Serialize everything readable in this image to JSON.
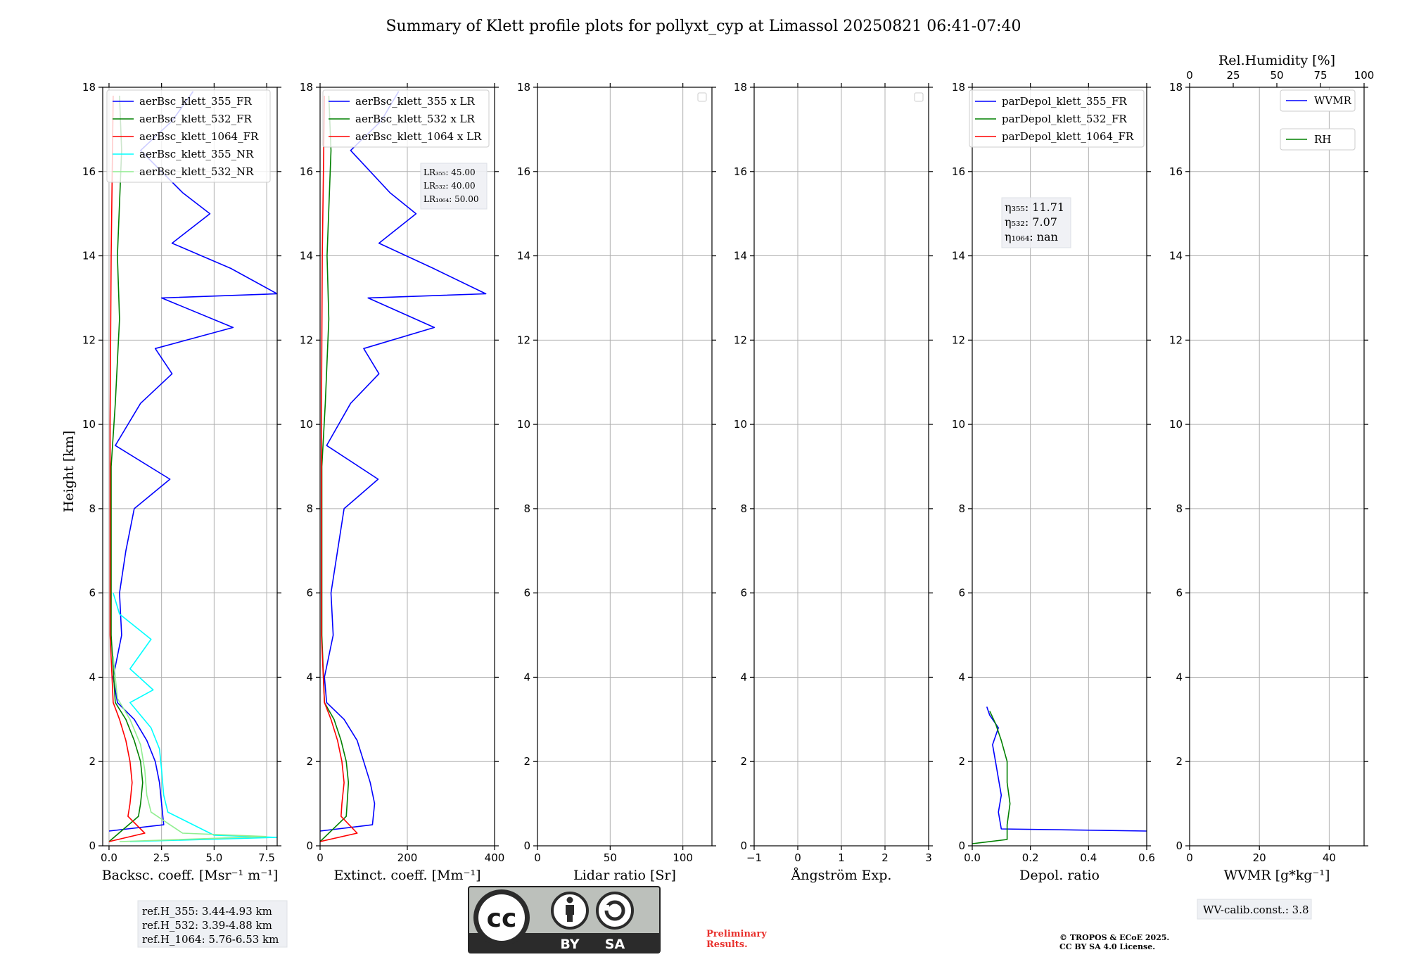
{
  "chart_data": {
    "title": "Summary of Klett profile plots for pollyxt_cyp at Limassol 20250821 06:41-07:40",
    "ylabel": "Height [km]",
    "ylim": [
      0,
      18
    ],
    "yticks": [
      "0",
      "2",
      "4",
      "6",
      "8",
      "10",
      "12",
      "14",
      "16",
      "18"
    ],
    "panels": [
      {
        "id": "backscatter",
        "type": "line",
        "xlabel": "Backsc. coeff. [Msr⁻¹ m⁻¹]",
        "xlim": [
          -0.3,
          8
        ],
        "xticks": [
          {
            "v": 0,
            "t": "0.0"
          },
          {
            "v": 2.5,
            "t": "2.5"
          },
          {
            "v": 5,
            "t": "5.0"
          },
          {
            "v": 7.5,
            "t": "7.5"
          }
        ],
        "legend": [
          "aerBsc_klett_355_FR",
          "aerBsc_klett_532_FR",
          "aerBsc_klett_1064_FR",
          "aerBsc_klett_355_NR",
          "aerBsc_klett_532_NR"
        ],
        "series": [
          {
            "name": "aerBsc_klett_355_FR",
            "color": "#0000ff",
            "points": [
              [
                0.0,
                0.35
              ],
              [
                2.6,
                0.5
              ],
              [
                2.5,
                1.0
              ],
              [
                2.4,
                1.5
              ],
              [
                2.2,
                2.0
              ],
              [
                1.8,
                2.5
              ],
              [
                1.2,
                3.0
              ],
              [
                0.4,
                3.4
              ],
              [
                0.2,
                4
              ],
              [
                0.6,
                5
              ],
              [
                0.5,
                6
              ],
              [
                0.8,
                7
              ],
              [
                1.2,
                8
              ],
              [
                2.9,
                8.7
              ],
              [
                0.3,
                9.5
              ],
              [
                1.5,
                10.5
              ],
              [
                3.0,
                11.2
              ],
              [
                2.2,
                11.8
              ],
              [
                5.9,
                12.3
              ],
              [
                2.5,
                13.0
              ],
              [
                8.0,
                13.1
              ],
              [
                5.8,
                13.7
              ],
              [
                3.0,
                14.3
              ],
              [
                4.8,
                15.0
              ],
              [
                3.5,
                15.5
              ],
              [
                1.5,
                16.5
              ],
              [
                3.0,
                17.2
              ],
              [
                4.0,
                17.9
              ]
            ]
          },
          {
            "name": "aerBsc_klett_532_FR",
            "color": "#008000",
            "points": [
              [
                0.0,
                0.1
              ],
              [
                1.4,
                0.7
              ],
              [
                1.5,
                1.0
              ],
              [
                1.6,
                1.5
              ],
              [
                1.5,
                2.0
              ],
              [
                1.2,
                2.5
              ],
              [
                0.8,
                3.0
              ],
              [
                0.3,
                3.4
              ],
              [
                0.1,
                5
              ],
              [
                0.1,
                9
              ],
              [
                0.3,
                10.5
              ],
              [
                0.5,
                12.5
              ],
              [
                0.4,
                14
              ],
              [
                0.6,
                16.5
              ],
              [
                0.5,
                17.8
              ]
            ]
          },
          {
            "name": "aerBsc_klett_1064_FR",
            "color": "#ff0000",
            "points": [
              [
                0.0,
                0.1
              ],
              [
                1.7,
                0.3
              ],
              [
                0.9,
                0.7
              ],
              [
                1.0,
                1.0
              ],
              [
                1.1,
                1.5
              ],
              [
                1.0,
                2.0
              ],
              [
                0.8,
                2.5
              ],
              [
                0.5,
                3.0
              ],
              [
                0.2,
                3.4
              ],
              [
                0.05,
                5
              ],
              [
                0.05,
                10
              ],
              [
                0.1,
                14
              ],
              [
                0.2,
                17.8
              ]
            ]
          },
          {
            "name": "aerBsc_klett_355_NR",
            "color": "#00ffff",
            "points": [
              [
                1.0,
                0.1
              ],
              [
                8.0,
                0.2
              ],
              [
                5.0,
                0.25
              ],
              [
                2.8,
                0.8
              ],
              [
                2.6,
                1.2
              ],
              [
                2.5,
                1.8
              ],
              [
                2.4,
                2.3
              ],
              [
                2.0,
                2.8
              ],
              [
                1.0,
                3.4
              ],
              [
                2.1,
                3.7
              ],
              [
                1.0,
                4.2
              ],
              [
                2.0,
                4.9
              ],
              [
                0.5,
                5.5
              ],
              [
                0.2,
                6
              ]
            ]
          },
          {
            "name": "aerBsc_klett_532_NR",
            "color": "#90ee90",
            "points": [
              [
                0.5,
                0.1
              ],
              [
                7.5,
                0.22
              ],
              [
                3.5,
                0.3
              ],
              [
                2.0,
                0.8
              ],
              [
                1.8,
                1.2
              ],
              [
                1.7,
                1.8
              ],
              [
                1.5,
                2.4
              ],
              [
                1.0,
                3.0
              ],
              [
                0.4,
                3.5
              ],
              [
                0.2,
                4.5
              ]
            ]
          }
        ]
      },
      {
        "id": "extinction",
        "type": "line",
        "xlabel": "Extinct. coeff. [Mm⁻¹]",
        "xlim": [
          0,
          400
        ],
        "xticks": [
          {
            "v": 0,
            "t": "0"
          },
          {
            "v": 200,
            "t": "200"
          },
          {
            "v": 400,
            "t": "400"
          }
        ],
        "legend": [
          "aerBsc_klett_355 x LR",
          "aerBsc_klett_532 x LR",
          "aerBsc_klett_1064 x LR"
        ],
        "annotation": {
          "lines": [
            "LR₃₅₅: 45.00",
            "LR₅₃₂: 40.00",
            "LR₁₀₆₄: 50.00"
          ]
        },
        "series": [
          {
            "name": "aerBsc_klett_355 x LR",
            "color": "#0000ff",
            "points": [
              [
                0,
                0.35
              ],
              [
                120,
                0.5
              ],
              [
                125,
                1.0
              ],
              [
                115,
                1.5
              ],
              [
                100,
                2.0
              ],
              [
                85,
                2.5
              ],
              [
                55,
                3.0
              ],
              [
                15,
                3.4
              ],
              [
                10,
                4
              ],
              [
                30,
                5
              ],
              [
                25,
                6
              ],
              [
                40,
                7
              ],
              [
                55,
                8
              ],
              [
                133,
                8.7
              ],
              [
                15,
                9.5
              ],
              [
                70,
                10.5
              ],
              [
                135,
                11.2
              ],
              [
                100,
                11.8
              ],
              [
                262,
                12.3
              ],
              [
                110,
                13.0
              ],
              [
                380,
                13.1
              ],
              [
                260,
                13.7
              ],
              [
                135,
                14.3
              ],
              [
                220,
                15.0
              ],
              [
                160,
                15.5
              ],
              [
                70,
                16.5
              ],
              [
                140,
                17.2
              ],
              [
                180,
                17.9
              ]
            ]
          },
          {
            "name": "aerBsc_klett_532 x LR",
            "color": "#008000",
            "points": [
              [
                0,
                0.1
              ],
              [
                60,
                0.7
              ],
              [
                62,
                1.0
              ],
              [
                65,
                1.5
              ],
              [
                60,
                2.0
              ],
              [
                48,
                2.5
              ],
              [
                32,
                3.0
              ],
              [
                10,
                3.4
              ],
              [
                4,
                5
              ],
              [
                4,
                9
              ],
              [
                12,
                10.5
              ],
              [
                20,
                12.5
              ],
              [
                16,
                14
              ],
              [
                25,
                16.5
              ],
              [
                20,
                17.8
              ]
            ]
          },
          {
            "name": "aerBsc_klett_1064 x LR",
            "color": "#ff0000",
            "points": [
              [
                0,
                0.1
              ],
              [
                85,
                0.3
              ],
              [
                48,
                0.7
              ],
              [
                50,
                1.0
              ],
              [
                55,
                1.5
              ],
              [
                50,
                2.0
              ],
              [
                40,
                2.5
              ],
              [
                25,
                3.0
              ],
              [
                10,
                3.4
              ],
              [
                3,
                5
              ],
              [
                3,
                10
              ],
              [
                5,
                14
              ],
              [
                10,
                17.8
              ]
            ]
          }
        ]
      },
      {
        "id": "lidar_ratio",
        "type": "line",
        "xlabel": "Lidar ratio [Sr]",
        "xlim": [
          0,
          120
        ],
        "xticks": [
          {
            "v": 0,
            "t": "0"
          },
          {
            "v": 50,
            "t": "50"
          },
          {
            "v": 100,
            "t": "100"
          }
        ],
        "series": []
      },
      {
        "id": "angstrom",
        "type": "line",
        "xlabel": "Ångström Exp.",
        "xlim": [
          -1,
          3
        ],
        "xticks": [
          {
            "v": -1,
            "t": "−1"
          },
          {
            "v": 0,
            "t": "0"
          },
          {
            "v": 1,
            "t": "1"
          },
          {
            "v": 2,
            "t": "2"
          },
          {
            "v": 3,
            "t": "3"
          }
        ],
        "series": []
      },
      {
        "id": "depol",
        "type": "line",
        "xlabel": "Depol. ratio",
        "xlim": [
          0,
          0.6
        ],
        "xticks": [
          {
            "v": 0,
            "t": "0.0"
          },
          {
            "v": 0.2,
            "t": "0.2"
          },
          {
            "v": 0.4,
            "t": "0.4"
          },
          {
            "v": 0.6,
            "t": "0.6"
          }
        ],
        "legend": [
          "parDepol_klett_355_FR",
          "parDepol_klett_532_FR",
          "parDepol_klett_1064_FR"
        ],
        "annotation": {
          "lines": [
            "η₃₅₅: 11.71",
            "η₅₃₂: 7.07",
            "η₁₀₆₄: nan"
          ]
        },
        "series": [
          {
            "name": "parDepol_klett_355_FR",
            "color": "#0000ff",
            "points": [
              [
                0.6,
                0.35
              ],
              [
                0.1,
                0.4
              ],
              [
                0.09,
                0.8
              ],
              [
                0.1,
                1.2
              ],
              [
                0.09,
                1.6
              ],
              [
                0.08,
                2.0
              ],
              [
                0.07,
                2.4
              ],
              [
                0.09,
                2.8
              ],
              [
                0.06,
                3.1
              ],
              [
                0.05,
                3.3
              ]
            ]
          },
          {
            "name": "parDepol_klett_532_FR",
            "color": "#008000",
            "points": [
              [
                0.0,
                0.05
              ],
              [
                0.12,
                0.15
              ],
              [
                0.12,
                0.5
              ],
              [
                0.13,
                1.0
              ],
              [
                0.12,
                1.5
              ],
              [
                0.12,
                2.0
              ],
              [
                0.1,
                2.5
              ],
              [
                0.08,
                2.9
              ],
              [
                0.06,
                3.2
              ]
            ]
          },
          {
            "name": "parDepol_klett_1064_FR",
            "color": "#ff0000",
            "points": []
          }
        ]
      },
      {
        "id": "wvmr",
        "type": "line",
        "xlabel": "WVMR [g*kg⁻¹]",
        "xlim": [
          0,
          50
        ],
        "xticks": [
          {
            "v": 0,
            "t": "0"
          },
          {
            "v": 20,
            "t": "20"
          },
          {
            "v": 40,
            "t": "40"
          }
        ],
        "top_xlabel": "Rel.Humidity [%]",
        "top_xlim": [
          0,
          100
        ],
        "top_xticks": [
          {
            "v": 0,
            "t": "0"
          },
          {
            "v": 25,
            "t": "25"
          },
          {
            "v": 50,
            "t": "50"
          },
          {
            "v": 75,
            "t": "75"
          },
          {
            "v": 100,
            "t": "100"
          }
        ],
        "legend": [
          "WVMR",
          "RH"
        ],
        "series": []
      }
    ]
  },
  "footer": {
    "ref_h": [
      "ref.H_355: 3.44-4.93 km",
      "ref.H_532: 3.39-4.88 km",
      "ref.H_1064: 5.76-6.53 km"
    ],
    "preliminary": [
      "Preliminary",
      "Results."
    ],
    "copyright": [
      "© TROPOS & ECoE 2025.",
      "CC BY SA 4.0 License."
    ],
    "wv_calib": "WV-calib.const.: 3.8",
    "cc_logo": {
      "main": "cc",
      "by": "BY",
      "sa": "SA"
    }
  }
}
